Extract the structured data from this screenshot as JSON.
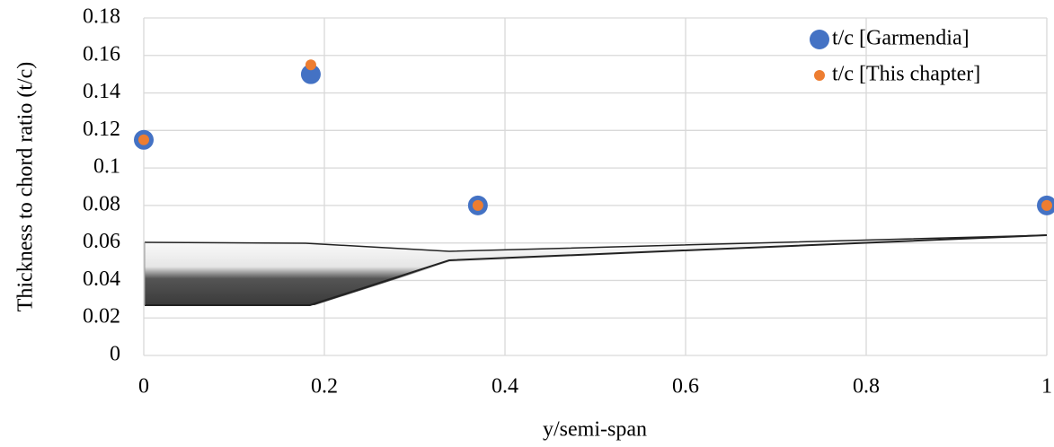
{
  "chart_data": {
    "type": "scatter",
    "x_label": "y/semi-span",
    "y_label": "Thickness to chord ratio (t/c)",
    "series": [
      {
        "name": "t/c [Garmendia]",
        "color": "#4472c4",
        "x": [
          0,
          0.185,
          0.37,
          1
        ],
        "values": [
          0.115,
          0.15,
          0.08,
          0.08
        ]
      },
      {
        "name": "t/c [This chapter]",
        "color": "#ed7d31",
        "x": [
          0,
          0.185,
          0.37,
          1
        ],
        "values": [
          0.115,
          0.155,
          0.08,
          0.08
        ]
      }
    ],
    "xlim": [
      0,
      1
    ],
    "xticks": [
      0,
      0.2,
      0.4,
      0.6,
      0.8,
      1
    ],
    "ylim": [
      0,
      0.18
    ],
    "yticks": [
      0,
      0.02,
      0.04,
      0.06,
      0.08,
      0.1,
      0.12,
      0.14,
      0.16,
      0.18
    ],
    "grid": true,
    "legend": "top-right"
  }
}
